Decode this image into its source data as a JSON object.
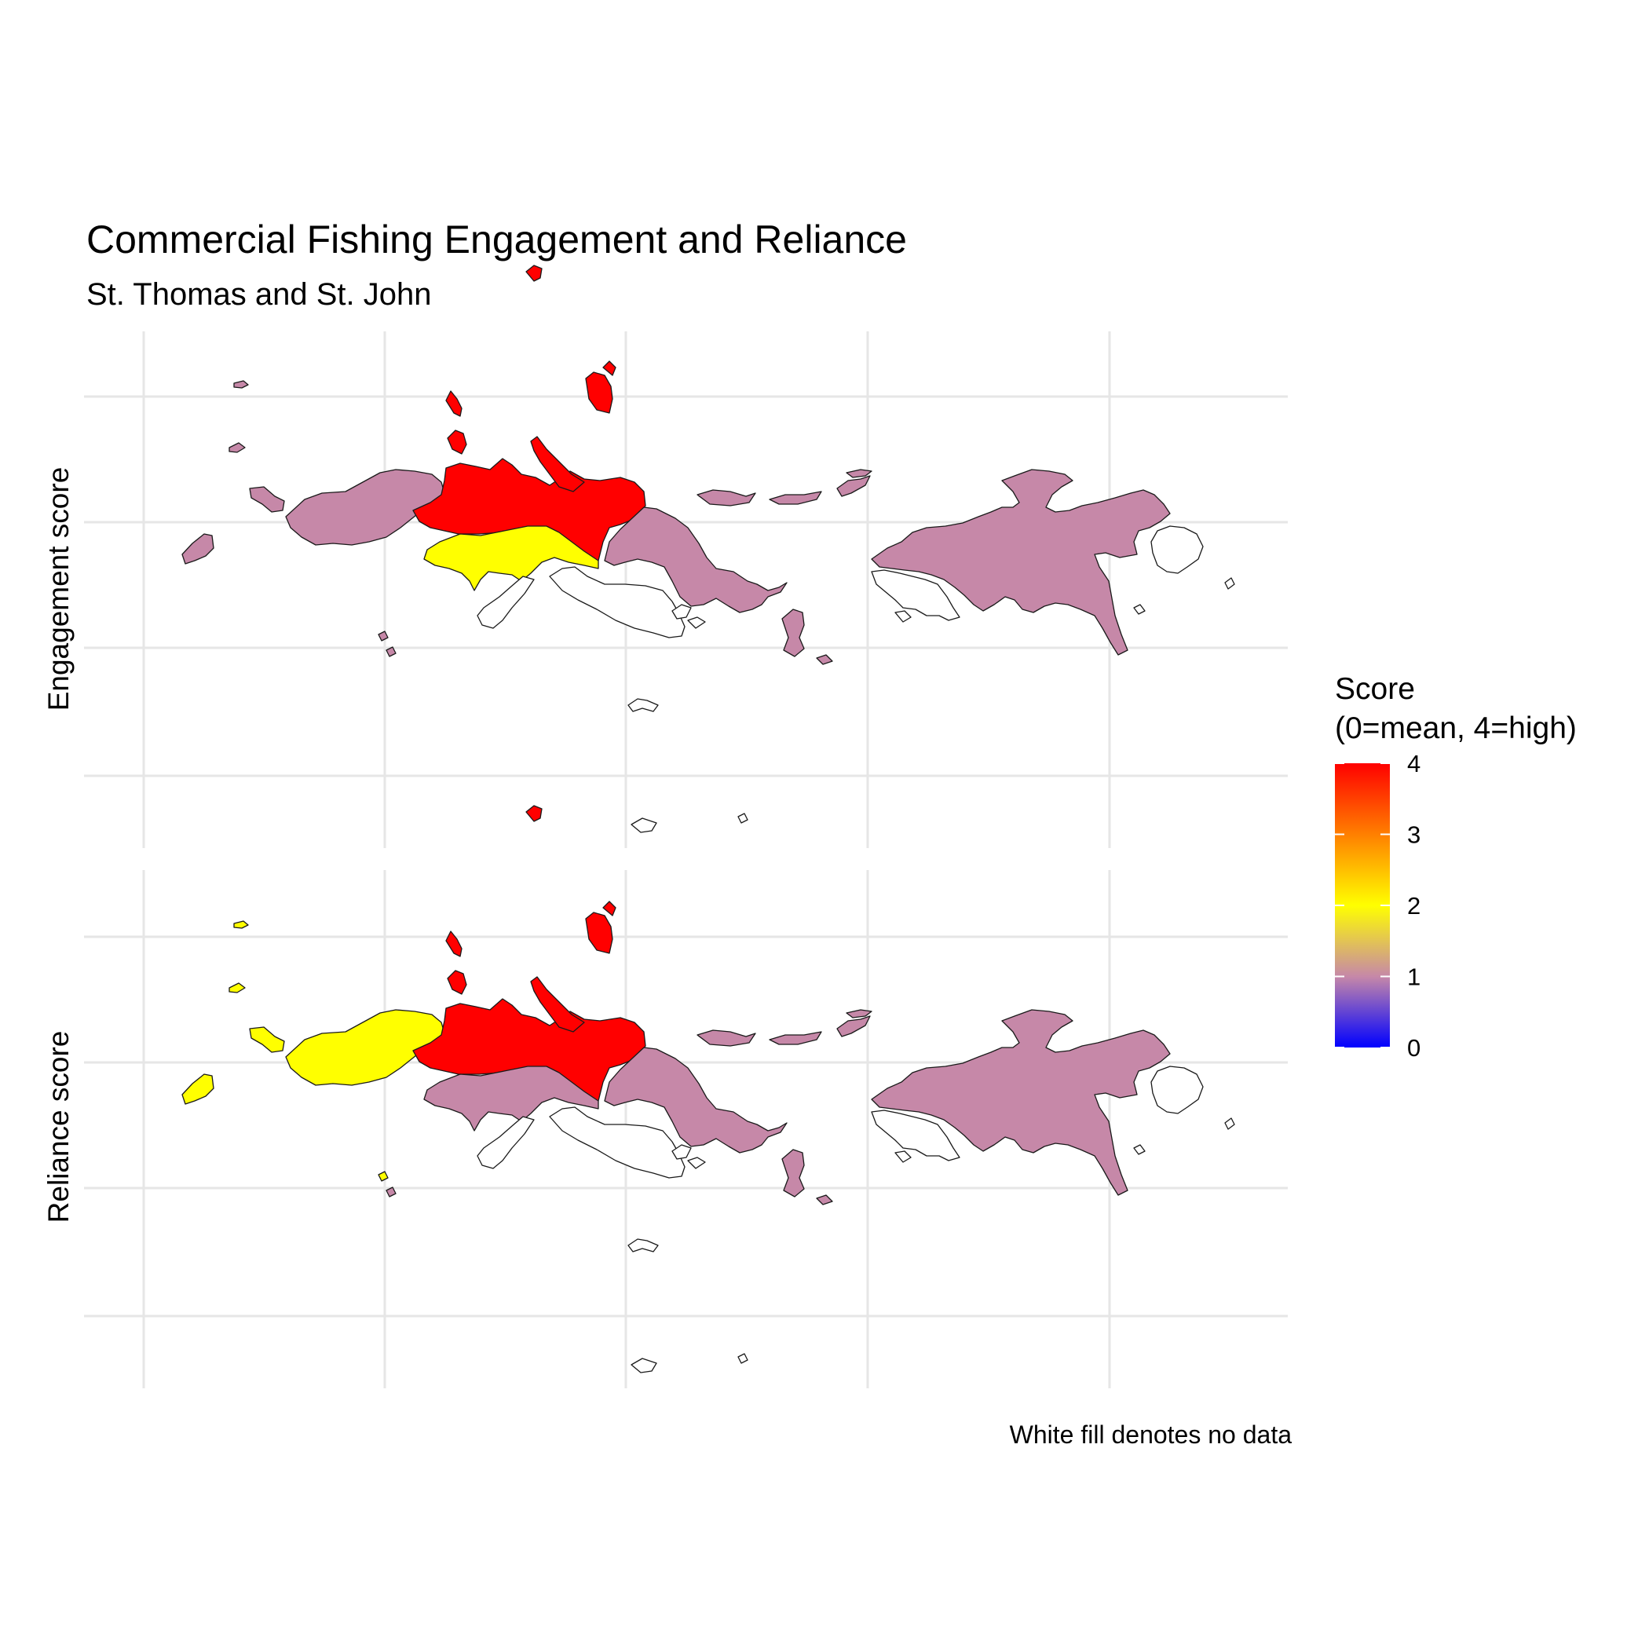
{
  "title": "Commercial Fishing Engagement and Reliance",
  "subtitle": "St. Thomas and St. John",
  "caption": "White fill denotes no data",
  "legend": {
    "title_line1": "Score",
    "title_line2": "(0=mean, 4=high)",
    "ticks": [
      "0",
      "1",
      "2",
      "3",
      "4"
    ],
    "range": [
      0,
      4
    ],
    "gradient_colors": [
      "#0000ff",
      "#c688a8",
      "#ffff00",
      "#ff0000"
    ]
  },
  "colors": {
    "no_data": "#ffffff",
    "score_1": "#c688a8",
    "score_2": "#ffff00",
    "score_4": "#ff0000",
    "grid": "#e6e6e6"
  },
  "chart_data": {
    "type": "choropleth",
    "fill_scale": "continuous gradient",
    "panels": [
      {
        "label": "Engagement score",
        "regions": {
          "far_west_islets": 1,
          "northwest_st_thomas": 1,
          "central_st_thomas": 4,
          "south_central_st_thomas": 2,
          "southwest_coast": null,
          "northern_cays": 4,
          "east_st_thomas": 1,
          "east_end_cays": 1,
          "southeast_coast": null,
          "st_john_main": 1,
          "st_john_west": null,
          "st_john_east_tip": null
        }
      },
      {
        "label": "Reliance score",
        "regions": {
          "far_west_islets": 2,
          "northwest_st_thomas": 2,
          "central_st_thomas": 4,
          "south_central_st_thomas": 1,
          "southwest_coast": null,
          "northern_cays": 4,
          "east_st_thomas": 1,
          "east_end_cays": 1,
          "southeast_coast": null,
          "st_john_main": 1,
          "st_john_west": null,
          "st_john_east_tip": null
        }
      }
    ]
  }
}
